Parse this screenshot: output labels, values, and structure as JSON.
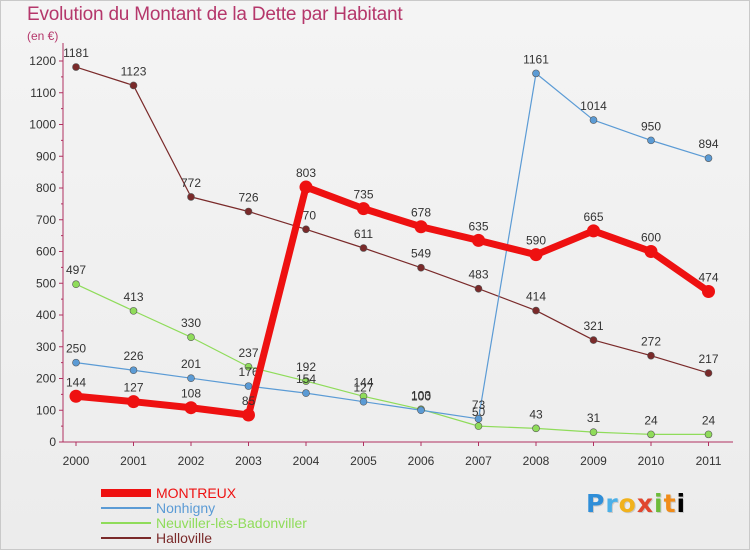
{
  "chart_data": {
    "type": "line",
    "title": "Evolution du Montant de la Dette par Habitant",
    "unit": "(en €)",
    "categories": [
      "2000",
      "2001",
      "2002",
      "2003",
      "2004",
      "2005",
      "2006",
      "2007",
      "2008",
      "2009",
      "2010",
      "2011"
    ],
    "yticks": [
      "0",
      "100",
      "200",
      "300",
      "400",
      "500",
      "600",
      "700",
      "800",
      "900",
      "1000",
      "1100",
      "1200"
    ],
    "ylim": [
      0,
      1200
    ],
    "grid": false,
    "legend_position": "bottom-left",
    "series": [
      {
        "name": "Halloville",
        "color": "#7a2a2a",
        "values": [
          1181,
          1123,
          772,
          726,
          670,
          611,
          549,
          483,
          414,
          321,
          272,
          217
        ]
      },
      {
        "name": "Neuviller-lès-Badonviller",
        "color": "#8fdc5a",
        "values": [
          497,
          413,
          330,
          237,
          192,
          144,
          103,
          50,
          43,
          31,
          24,
          24
        ]
      },
      {
        "name": "Nonhigny",
        "color": "#5b9bd5",
        "values": [
          250,
          226,
          201,
          176,
          154,
          127,
          100,
          73,
          1161,
          1014,
          950,
          894
        ]
      },
      {
        "name": "MONTREUX",
        "color": "#ee1111",
        "values": [
          144,
          127,
          108,
          85,
          803,
          735,
          678,
          635,
          590,
          665,
          600,
          474
        ]
      }
    ],
    "legend": [
      "MONTREUX",
      "Nonhigny",
      "Neuviller-lès-Badonviller",
      "Halloville"
    ]
  },
  "logo": {
    "letters": [
      "P",
      "r",
      "o",
      "x",
      "i",
      "t",
      "i"
    ]
  }
}
